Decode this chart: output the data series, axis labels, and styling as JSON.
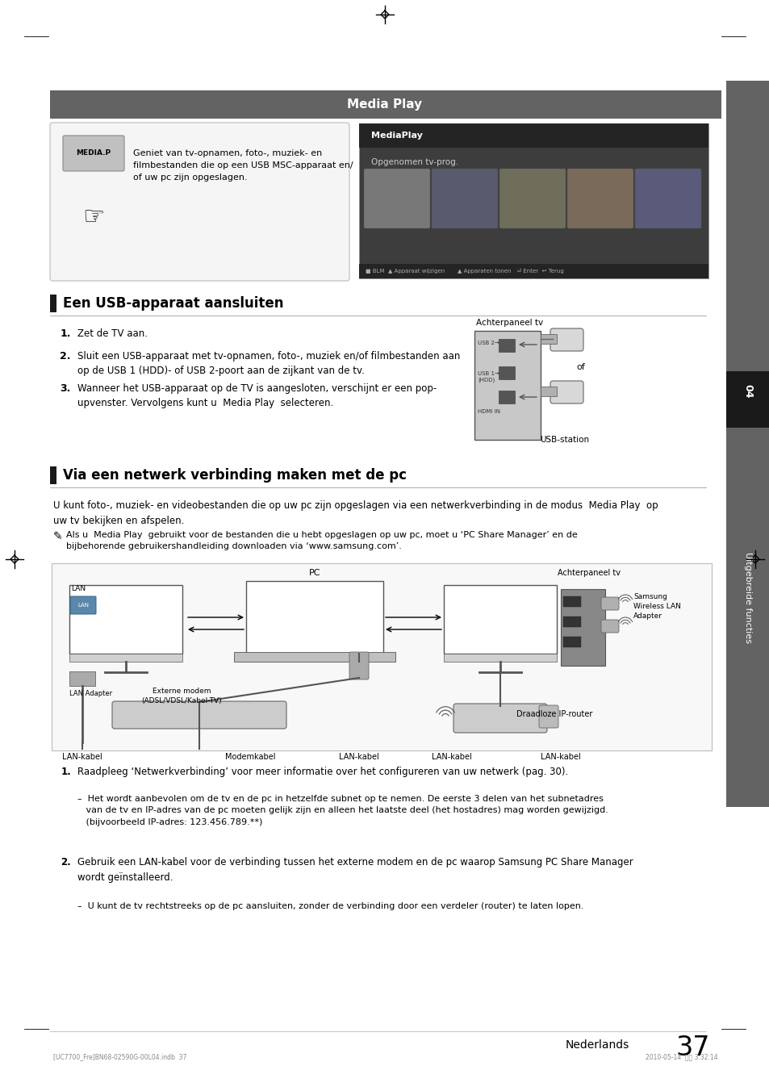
{
  "page_bg": "#ffffff",
  "page_width": 9.54,
  "page_height": 13.21,
  "dpi": 100,
  "header_bar_color": "#636363",
  "header_text": "Media Play",
  "header_text_color": "#ffffff",
  "section1_title": "Een USB-apparaat aansluiten",
  "section2_title": "Via een netwerk verbinding maken met de pc",
  "section_bar_color": "#1a1a1a",
  "body_text1": "U kunt foto-, muziek- en videobestanden die op uw pc zijn opgeslagen via een netwerkverbinding in de modus  Media Play  op\nuw tv bekijken en afspelen.",
  "note_text": "Als u  Media Play  gebruikt voor de bestanden die u hebt opgeslagen op uw pc, moet u ‘PC Share Manager’ en de\nbijbehorende gebruikershandleiding downloaden via ‘www.samsung.com’.",
  "footer_text": "Nederlands",
  "footer_num": "37",
  "side_tab_color1": "#636363",
  "side_tab_color2": "#1a1a1a",
  "side_tab_text": "Uitgebreide functies",
  "mediaplay_left_text": "Geniet van tv-opnamen, foto-, muziek- en\nfilmbestanden die op een USB MSC-apparaat en/\nof uw pc zijn opgeslagen.",
  "mediaplay_right_title": "MediaPlay",
  "mediaplay_right_subtitle": "Opgenomen tv-prog.",
  "mediaplay_bottom_bar": "■ BLM  ▲ Apparaat wijzigen       ▲ Apparaten tonen   ⏎ Enter  ↩ Terug"
}
